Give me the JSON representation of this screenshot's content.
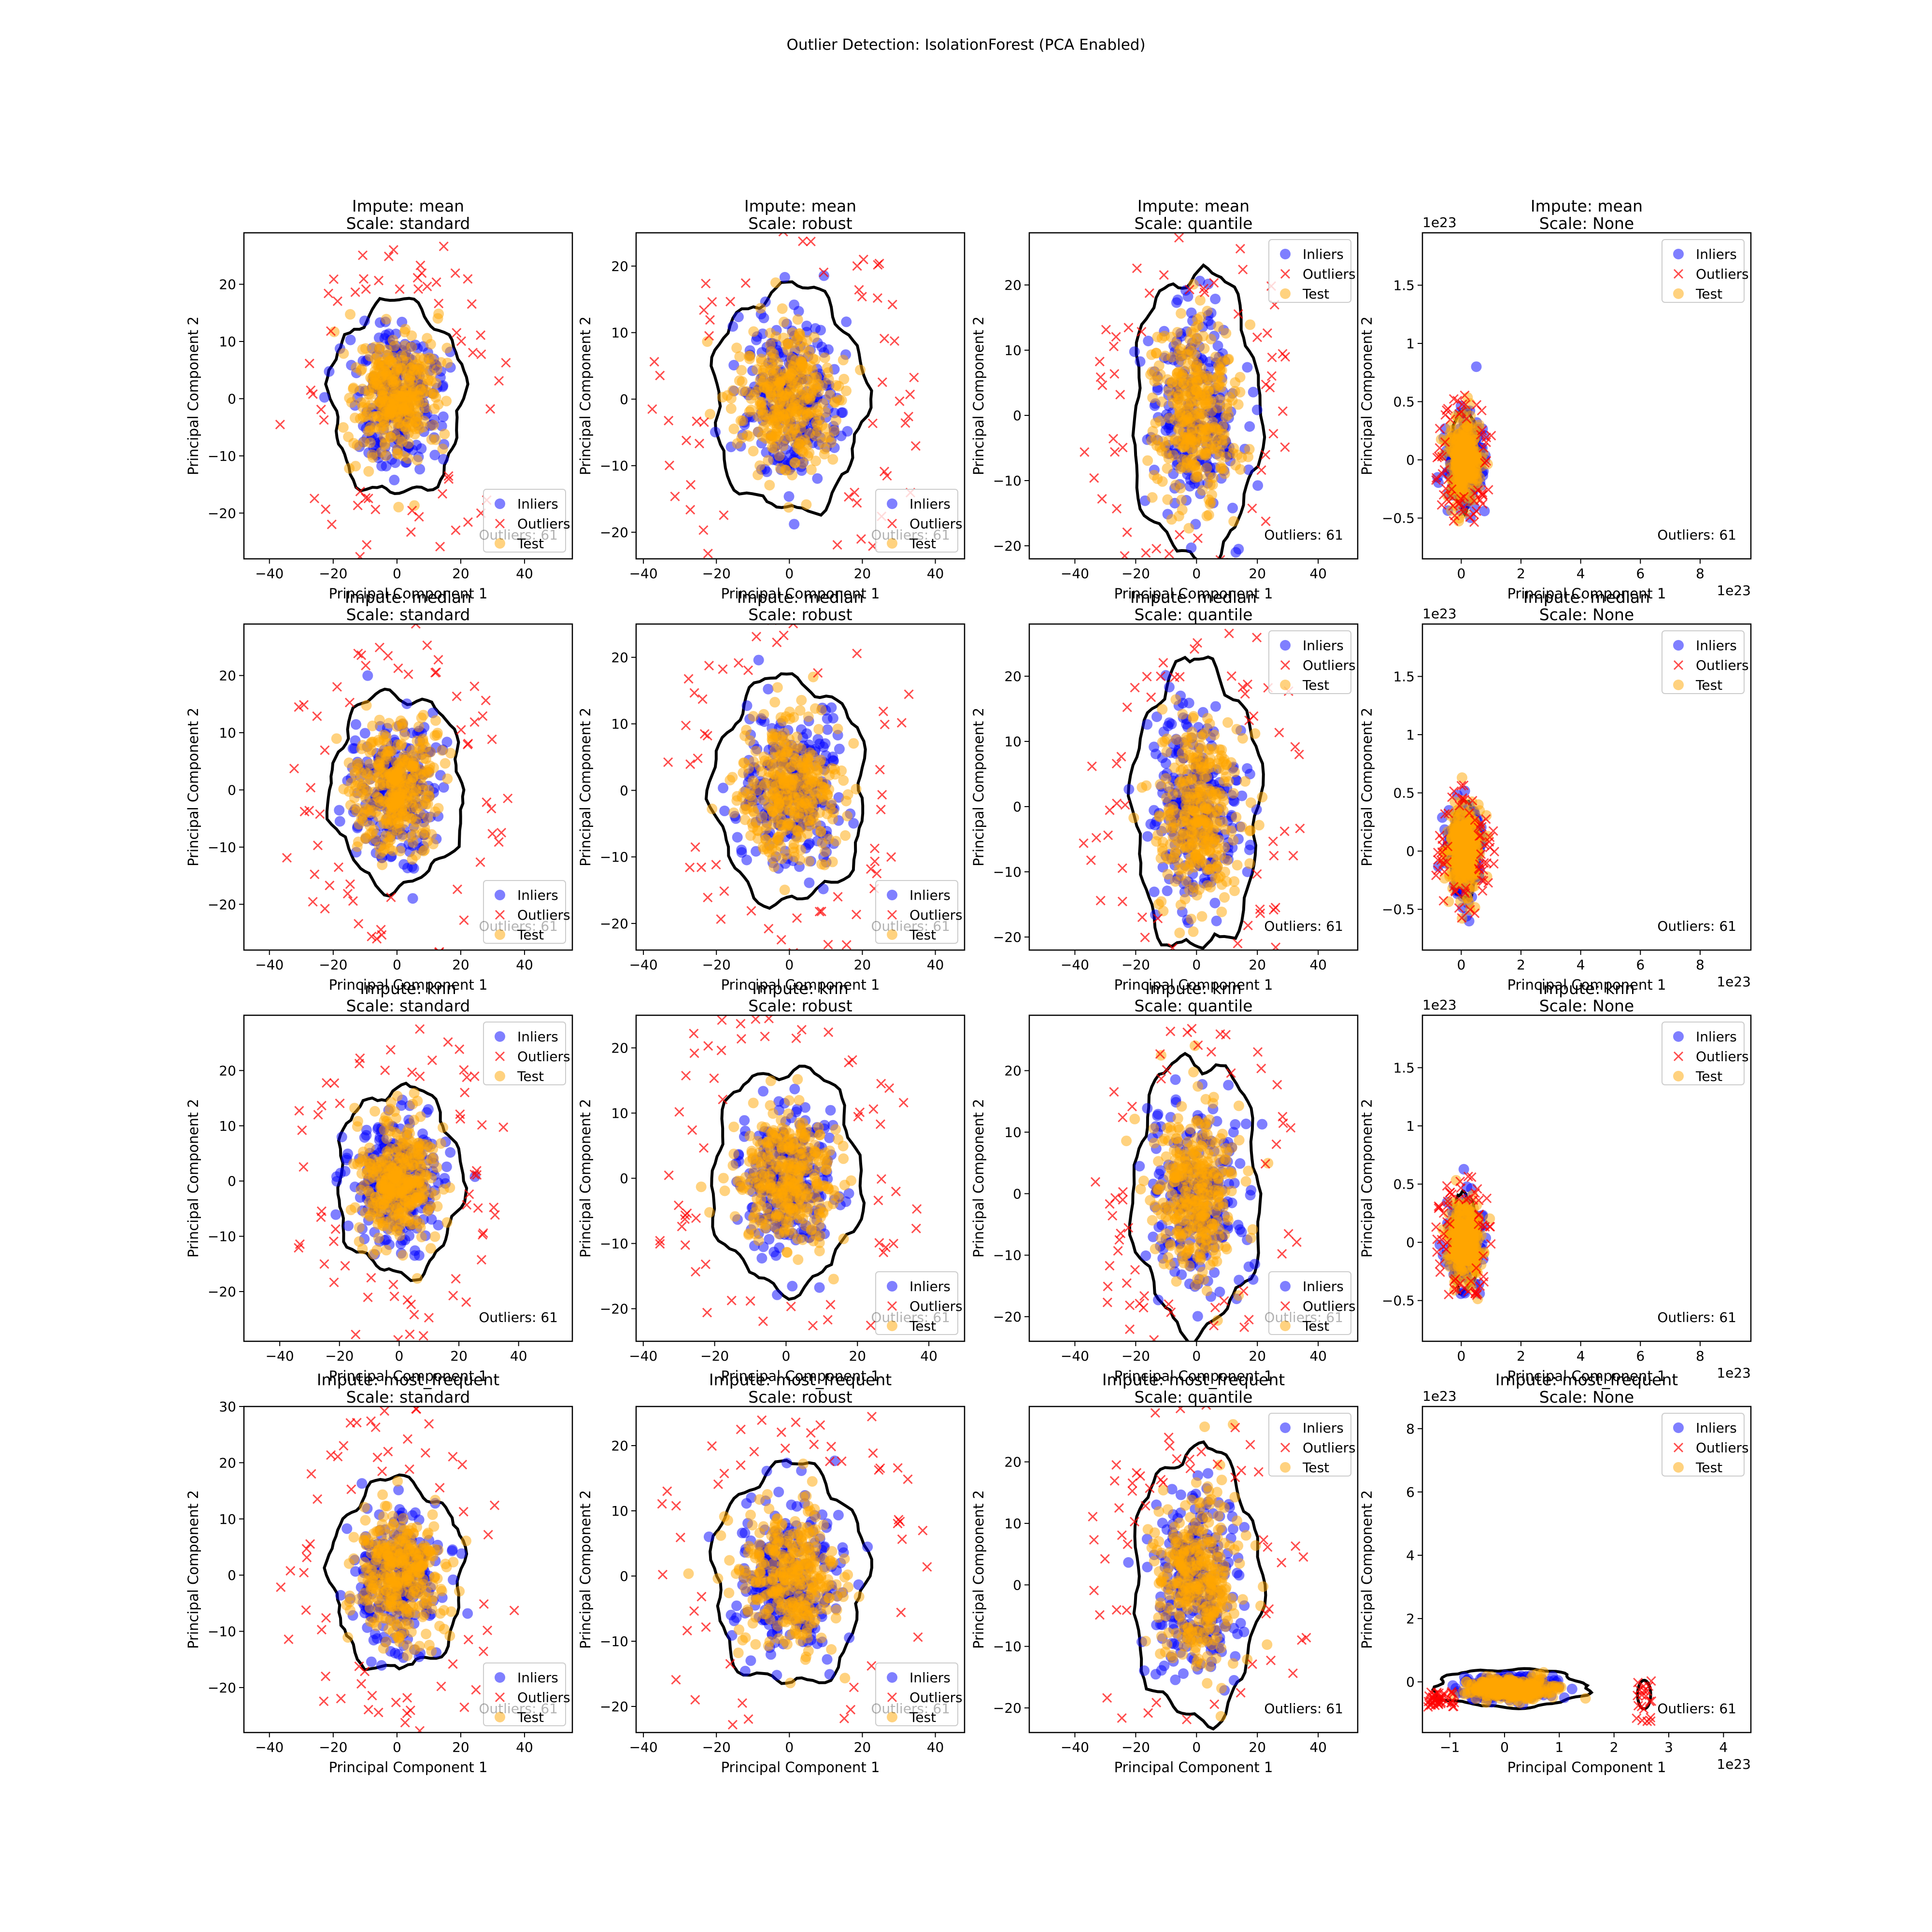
{
  "figure": {
    "suptitle": "Outlier Detection: IsolationForest (PCA Enabled)",
    "colors": {
      "inliers": "#0000ff",
      "outliers": "#ff0000",
      "test": "#ffa500",
      "boundary": "#000000"
    }
  },
  "chart_data": [
    {
      "type": "scatter",
      "title_line1": "Impute: mean",
      "title_line2": "Scale: standard",
      "xlabel": "Principal Component 1",
      "ylabel": "Principal Component 2",
      "xlim": [
        -48,
        55
      ],
      "ylim": [
        -28,
        29
      ],
      "xticks": [
        -40,
        -20,
        0,
        20,
        40
      ],
      "yticks": [
        -20,
        -10,
        0,
        10,
        20
      ],
      "offset_x": "",
      "offset_y": "",
      "legend_position": "lower-right",
      "annotation": "Outliers: 61",
      "series": [
        {
          "name": "Inliers"
        },
        {
          "name": "Outliers"
        },
        {
          "name": "Test"
        }
      ]
    },
    {
      "type": "scatter",
      "title_line1": "Impute: mean",
      "title_line2": "Scale: robust",
      "xlabel": "Principal Component 1",
      "ylabel": "Principal Component 2",
      "xlim": [
        -42,
        48
      ],
      "ylim": [
        -24,
        25
      ],
      "xticks": [
        -40,
        -20,
        0,
        20,
        40
      ],
      "yticks": [
        -20,
        -10,
        0,
        10,
        20
      ],
      "offset_x": "",
      "offset_y": "",
      "legend_position": "lower-right",
      "annotation": "Outliers: 61",
      "series": [
        {
          "name": "Inliers"
        },
        {
          "name": "Outliers"
        },
        {
          "name": "Test"
        }
      ]
    },
    {
      "type": "scatter",
      "title_line1": "Impute: mean",
      "title_line2": "Scale: quantile",
      "xlabel": "Principal Component 1",
      "ylabel": "Principal Component 2",
      "xlim": [
        -55,
        53
      ],
      "ylim": [
        -22,
        28
      ],
      "xticks": [
        -40,
        -20,
        0,
        20,
        40
      ],
      "yticks": [
        -20,
        -10,
        0,
        10,
        20
      ],
      "offset_x": "",
      "offset_y": "",
      "legend_position": "upper-right",
      "annotation": "Outliers: 61",
      "series": [
        {
          "name": "Inliers"
        },
        {
          "name": "Outliers"
        },
        {
          "name": "Test"
        }
      ]
    },
    {
      "type": "scatter",
      "title_line1": "Impute: mean",
      "title_line2": "Scale: None",
      "xlabel": "Principal Component 1",
      "ylabel": "Principal Component 2",
      "xlim": [
        -1.3,
        9.7
      ],
      "ylim": [
        -0.85,
        1.95
      ],
      "xticks": [
        0,
        2,
        4,
        6,
        8
      ],
      "yticks": [
        -0.5,
        0.0,
        0.5,
        1.0,
        1.5
      ],
      "offset_x": "1e23",
      "offset_y": "1e23",
      "legend_position": "upper-right",
      "annotation": "Outliers: 61",
      "series": [
        {
          "name": "Inliers"
        },
        {
          "name": "Outliers"
        },
        {
          "name": "Test"
        }
      ]
    },
    {
      "type": "scatter",
      "title_line1": "Impute: median",
      "title_line2": "Scale: standard",
      "xlabel": "Principal Component 1",
      "ylabel": "Principal Component 2",
      "xlim": [
        -48,
        55
      ],
      "ylim": [
        -28,
        29
      ],
      "xticks": [
        -40,
        -20,
        0,
        20,
        40
      ],
      "yticks": [
        -20,
        -10,
        0,
        10,
        20
      ],
      "offset_x": "",
      "offset_y": "",
      "legend_position": "lower-right",
      "annotation": "Outliers: 61",
      "series": [
        {
          "name": "Inliers"
        },
        {
          "name": "Outliers"
        },
        {
          "name": "Test"
        }
      ]
    },
    {
      "type": "scatter",
      "title_line1": "Impute: median",
      "title_line2": "Scale: robust",
      "xlabel": "Principal Component 1",
      "ylabel": "Principal Component 2",
      "xlim": [
        -42,
        48
      ],
      "ylim": [
        -24,
        25
      ],
      "xticks": [
        -40,
        -20,
        0,
        20,
        40
      ],
      "yticks": [
        -20,
        -10,
        0,
        10,
        20
      ],
      "offset_x": "",
      "offset_y": "",
      "legend_position": "lower-right",
      "annotation": "Outliers: 61",
      "series": [
        {
          "name": "Inliers"
        },
        {
          "name": "Outliers"
        },
        {
          "name": "Test"
        }
      ]
    },
    {
      "type": "scatter",
      "title_line1": "Impute: median",
      "title_line2": "Scale: quantile",
      "xlabel": "Principal Component 1",
      "ylabel": "Principal Component 2",
      "xlim": [
        -55,
        53
      ],
      "ylim": [
        -22,
        28
      ],
      "xticks": [
        -40,
        -20,
        0,
        20,
        40
      ],
      "yticks": [
        -20,
        -10,
        0,
        10,
        20
      ],
      "offset_x": "",
      "offset_y": "",
      "legend_position": "upper-right",
      "annotation": "Outliers: 61",
      "series": [
        {
          "name": "Inliers"
        },
        {
          "name": "Outliers"
        },
        {
          "name": "Test"
        }
      ]
    },
    {
      "type": "scatter",
      "title_line1": "Impute: median",
      "title_line2": "Scale: None",
      "xlabel": "Principal Component 1",
      "ylabel": "Principal Component 2",
      "xlim": [
        -1.3,
        9.7
      ],
      "ylim": [
        -0.85,
        1.95
      ],
      "xticks": [
        0,
        2,
        4,
        6,
        8
      ],
      "yticks": [
        -0.5,
        0.0,
        0.5,
        1.0,
        1.5
      ],
      "offset_x": "1e23",
      "offset_y": "1e23",
      "legend_position": "upper-right",
      "annotation": "Outliers: 61",
      "series": [
        {
          "name": "Inliers"
        },
        {
          "name": "Outliers"
        },
        {
          "name": "Test"
        }
      ]
    },
    {
      "type": "scatter",
      "title_line1": "Impute: knn",
      "title_line2": "Scale: standard",
      "xlabel": "Principal Component 1",
      "ylabel": "Principal Component 2",
      "xlim": [
        -52,
        58
      ],
      "ylim": [
        -29,
        30
      ],
      "xticks": [
        -40,
        -20,
        0,
        20,
        40
      ],
      "yticks": [
        -20,
        -10,
        0,
        10,
        20
      ],
      "offset_x": "",
      "offset_y": "",
      "legend_position": "upper-right",
      "annotation": "Outliers: 61",
      "series": [
        {
          "name": "Inliers"
        },
        {
          "name": "Outliers"
        },
        {
          "name": "Test"
        }
      ]
    },
    {
      "type": "scatter",
      "title_line1": "Impute: knn",
      "title_line2": "Scale: robust",
      "xlabel": "Principal Component 1",
      "ylabel": "Principal Component 2",
      "xlim": [
        -42,
        50
      ],
      "ylim": [
        -25,
        25
      ],
      "xticks": [
        -40,
        -20,
        0,
        20,
        40
      ],
      "yticks": [
        -20,
        -10,
        0,
        10,
        20
      ],
      "offset_x": "",
      "offset_y": "",
      "legend_position": "lower-right",
      "annotation": "Outliers: 61",
      "series": [
        {
          "name": "Inliers"
        },
        {
          "name": "Outliers"
        },
        {
          "name": "Test"
        }
      ]
    },
    {
      "type": "scatter",
      "title_line1": "Impute: knn",
      "title_line2": "Scale: quantile",
      "xlabel": "Principal Component 1",
      "ylabel": "Principal Component 2",
      "xlim": [
        -55,
        53
      ],
      "ylim": [
        -24,
        29
      ],
      "xticks": [
        -40,
        -20,
        0,
        20,
        40
      ],
      "yticks": [
        -20,
        -10,
        0,
        10,
        20
      ],
      "offset_x": "",
      "offset_y": "",
      "legend_position": "lower-right",
      "annotation": "Outliers: 61",
      "series": [
        {
          "name": "Inliers"
        },
        {
          "name": "Outliers"
        },
        {
          "name": "Test"
        }
      ]
    },
    {
      "type": "scatter",
      "title_line1": "Impute: knn",
      "title_line2": "Scale: None",
      "xlabel": "Principal Component 1",
      "ylabel": "Principal Component 2",
      "xlim": [
        -1.3,
        9.7
      ],
      "ylim": [
        -0.85,
        1.95
      ],
      "xticks": [
        0,
        2,
        4,
        6,
        8
      ],
      "yticks": [
        -0.5,
        0.0,
        0.5,
        1.0,
        1.5
      ],
      "offset_x": "1e23",
      "offset_y": "1e23",
      "legend_position": "upper-right",
      "annotation": "Outliers: 61",
      "series": [
        {
          "name": "Inliers"
        },
        {
          "name": "Outliers"
        },
        {
          "name": "Test"
        }
      ]
    },
    {
      "type": "scatter",
      "title_line1": "Impute: most_frequent",
      "title_line2": "Scale: standard",
      "xlabel": "Principal Component 1",
      "ylabel": "Principal Component 2",
      "xlim": [
        -48,
        55
      ],
      "ylim": [
        -28,
        30
      ],
      "xticks": [
        -40,
        -20,
        0,
        20,
        40
      ],
      "yticks": [
        -20,
        -10,
        0,
        10,
        20,
        30
      ],
      "offset_x": "",
      "offset_y": "",
      "legend_position": "lower-right",
      "annotation": "Outliers: 61",
      "series": [
        {
          "name": "Inliers"
        },
        {
          "name": "Outliers"
        },
        {
          "name": "Test"
        }
      ]
    },
    {
      "type": "scatter",
      "title_line1": "Impute: most_frequent",
      "title_line2": "Scale: robust",
      "xlabel": "Principal Component 1",
      "ylabel": "Principal Component 2",
      "xlim": [
        -42,
        48
      ],
      "ylim": [
        -24,
        26
      ],
      "xticks": [
        -40,
        -20,
        0,
        20,
        40
      ],
      "yticks": [
        -20,
        -10,
        0,
        10,
        20
      ],
      "offset_x": "",
      "offset_y": "",
      "legend_position": "lower-right",
      "annotation": "Outliers: 61",
      "series": [
        {
          "name": "Inliers"
        },
        {
          "name": "Outliers"
        },
        {
          "name": "Test"
        }
      ]
    },
    {
      "type": "scatter",
      "title_line1": "Impute: most_frequent",
      "title_line2": "Scale: quantile",
      "xlabel": "Principal Component 1",
      "ylabel": "Principal Component 2",
      "xlim": [
        -55,
        53
      ],
      "ylim": [
        -24,
        29
      ],
      "xticks": [
        -40,
        -20,
        0,
        20,
        40
      ],
      "yticks": [
        -20,
        -10,
        0,
        10,
        20
      ],
      "offset_x": "",
      "offset_y": "",
      "legend_position": "upper-right",
      "annotation": "Outliers: 61",
      "series": [
        {
          "name": "Inliers"
        },
        {
          "name": "Outliers"
        },
        {
          "name": "Test"
        }
      ]
    },
    {
      "type": "scatter",
      "title_line1": "Impute: most_frequent",
      "title_line2": "Scale: None",
      "xlabel": "Principal Component 1",
      "ylabel": "Principal Component 2",
      "xlim": [
        -1.5,
        4.5
      ],
      "ylim": [
        -1.6,
        8.7
      ],
      "xticks": [
        -1,
        0,
        1,
        2,
        3,
        4
      ],
      "yticks": [
        0,
        2,
        4,
        6,
        8
      ],
      "offset_x": "1e23",
      "offset_y": "1e23",
      "legend_position": "upper-right",
      "annotation": "Outliers: 61",
      "series": [
        {
          "name": "Inliers"
        },
        {
          "name": "Outliers"
        },
        {
          "name": "Test"
        }
      ]
    }
  ]
}
